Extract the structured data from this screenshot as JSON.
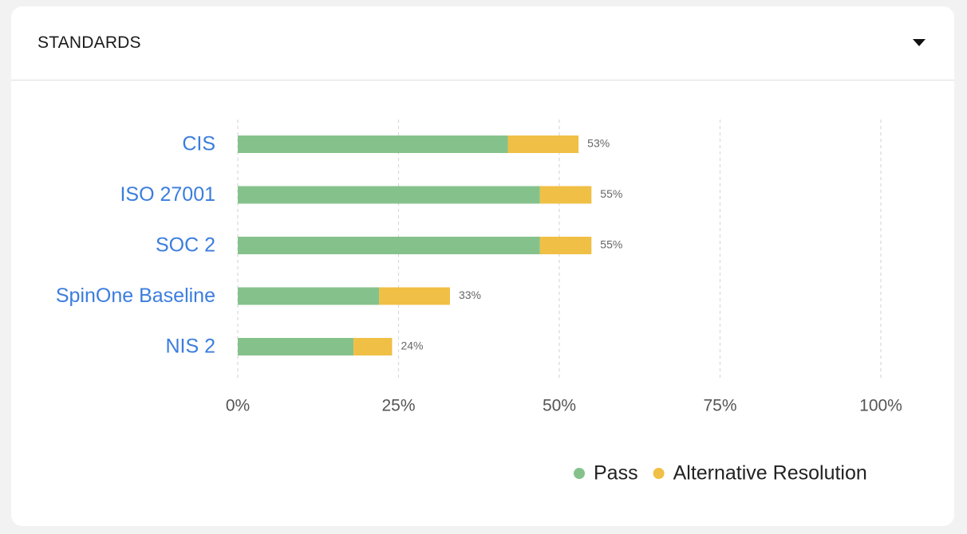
{
  "header": {
    "title": "STANDARDS",
    "toggle_icon": "caret-down-icon"
  },
  "chart_data": {
    "type": "bar",
    "orientation": "horizontal",
    "stacked": true,
    "categories": [
      "CIS",
      "ISO 27001",
      "SOC 2",
      "SpinOne Baseline",
      "NIS 2"
    ],
    "series": [
      {
        "name": "Pass",
        "color": "#85c28b",
        "values": [
          42,
          47,
          47,
          22,
          18
        ]
      },
      {
        "name": "Alternative Resolution",
        "color": "#f0bf45",
        "values": [
          11,
          8,
          8,
          11,
          6
        ]
      }
    ],
    "totals_labels": [
      "53%",
      "55%",
      "55%",
      "33%",
      "24%"
    ],
    "xlim": [
      0,
      100
    ],
    "xticks": [
      0,
      25,
      50,
      75,
      100
    ],
    "xtick_labels": [
      "0%",
      "25%",
      "50%",
      "75%",
      "100%"
    ],
    "grid": true,
    "grid_style": "dashed-vertical",
    "category_label_color": "#3b7ddd",
    "legend_position": "bottom-right"
  }
}
